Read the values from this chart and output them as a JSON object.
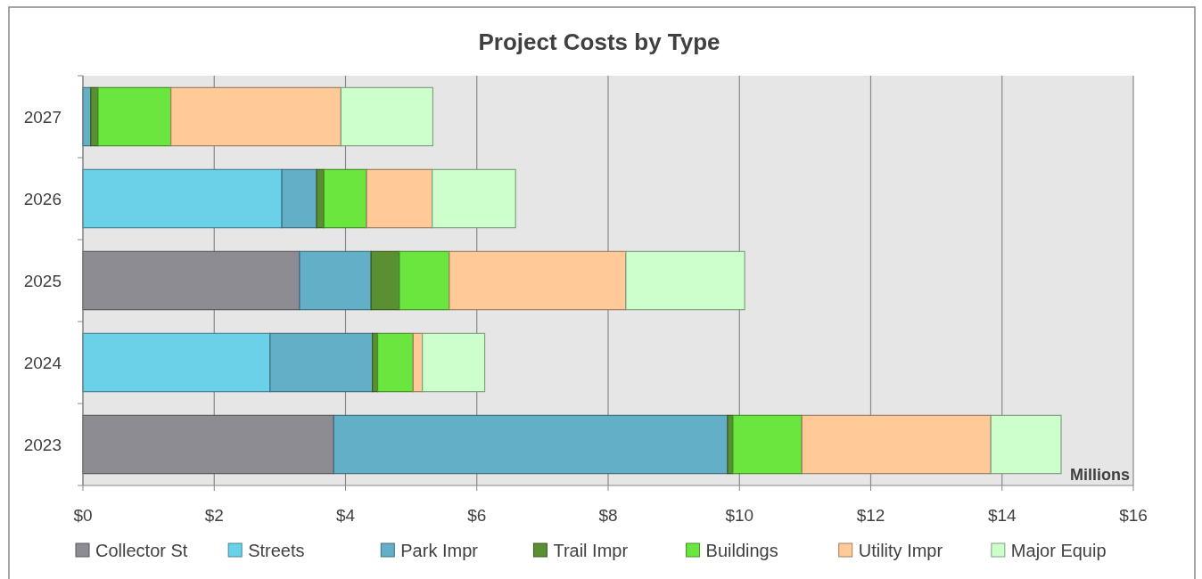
{
  "chart_data": {
    "type": "bar",
    "orientation": "horizontal",
    "stacked": true,
    "title": "Project Costs by Type",
    "categories": [
      "2027",
      "2026",
      "2025",
      "2024",
      "2023"
    ],
    "series": [
      {
        "name": "Collector St",
        "color": "#8e8c93",
        "values": [
          null,
          null,
          3.3,
          null,
          3.82
        ]
      },
      {
        "name": "Streets",
        "color": "#6bd1e8",
        "values": [
          null,
          3.03,
          null,
          2.85,
          null
        ]
      },
      {
        "name": "Park Impr",
        "color": "#63afc7",
        "values": [
          0.12,
          0.53,
          1.09,
          1.56,
          6.0
        ]
      },
      {
        "name": "Trail Impr",
        "color": "#5a8f32",
        "values": [
          0.11,
          0.11,
          0.43,
          0.08,
          0.08
        ]
      },
      {
        "name": "Buildings",
        "color": "#6be63e",
        "values": [
          1.11,
          0.65,
          0.76,
          0.54,
          1.05
        ]
      },
      {
        "name": "Utility Impr",
        "color": "#ffc998",
        "values": [
          2.59,
          1.0,
          2.69,
          0.14,
          2.88
        ]
      },
      {
        "name": "Major Equip",
        "color": "#ccffcc",
        "values": [
          1.4,
          1.27,
          1.81,
          0.95,
          1.07
        ]
      }
    ],
    "xlim": [
      0,
      16
    ],
    "xticks": [
      {
        "value": 0,
        "label": "$0"
      },
      {
        "value": 2,
        "label": "$2"
      },
      {
        "value": 4,
        "label": "$4"
      },
      {
        "value": 6,
        "label": "$6"
      },
      {
        "value": 8,
        "label": "$8"
      },
      {
        "value": 10,
        "label": "$10"
      },
      {
        "value": 12,
        "label": "$12"
      },
      {
        "value": 14,
        "label": "$14"
      },
      {
        "value": 16,
        "label": "$16"
      }
    ],
    "grid": "x",
    "legend": "bottom",
    "annotations": [
      "Millions"
    ]
  }
}
